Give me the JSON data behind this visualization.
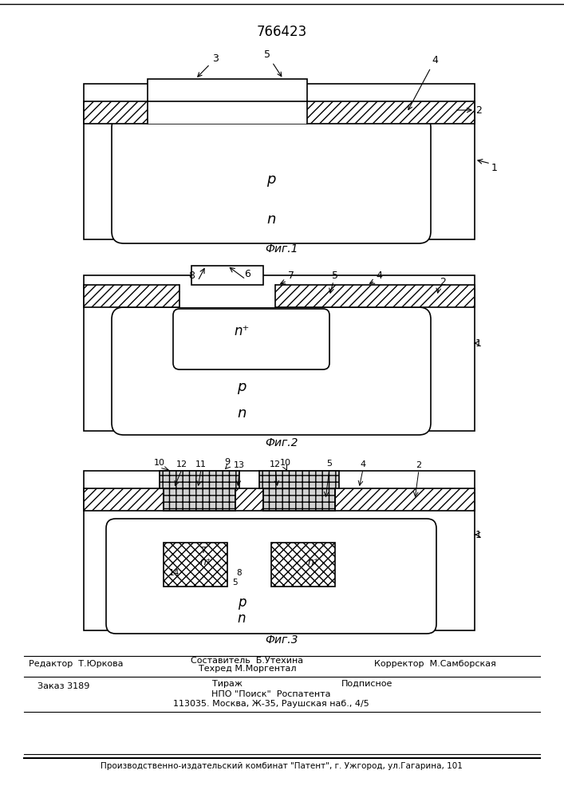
{
  "title": "766423",
  "fig1_caption": "Фиг.1",
  "fig2_caption": "Фиг.2",
  "fig3_caption": "Фиг.3",
  "footer_line1_left": "Редактор  Т.Юркова",
  "footer_line1_mid1": "Составитель  Б.Утехина",
  "footer_line1_mid2": "Техред М.Моргентал",
  "footer_line1_right": "Корректор  М.Самборская",
  "footer_line2_left": "Заказ 3189",
  "footer_line2_mid1": "Тираж",
  "footer_line2_mid2": "Подписное",
  "footer_line2_mid3": "НПО \"Поиск\"  Роспатента",
  "footer_line3": "113035. Москва, Ж-35, Раушская наб., 4/5",
  "footer_bottom": "Производственно-издательский комбинат \"Патент\", г. Ужгород, ул.Гагарина, 101",
  "hatch_color": "#555555",
  "bg_color": "#ffffff",
  "line_color": "#000000"
}
